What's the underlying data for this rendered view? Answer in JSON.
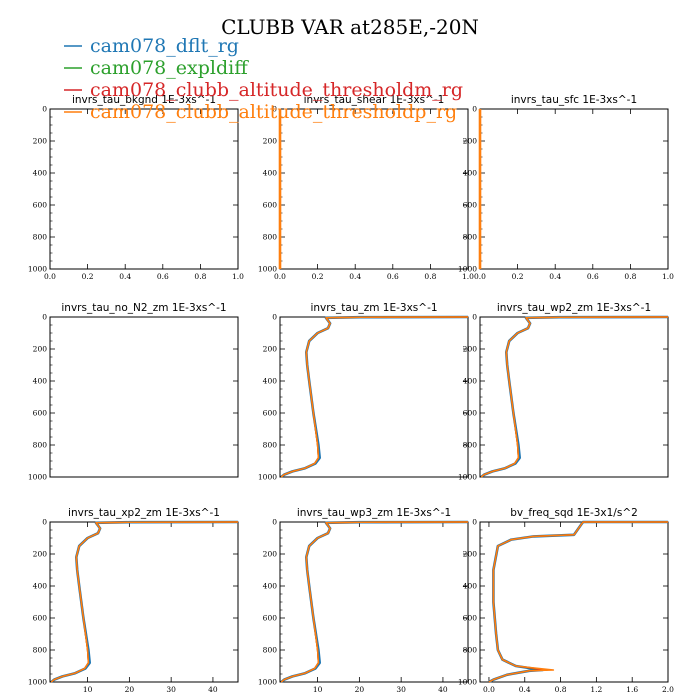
{
  "figure": {
    "title": "CLUBB VAR at285E,-20N"
  },
  "legend": [
    {
      "name": "cam078_dflt_rg",
      "color": "#1f77b4"
    },
    {
      "name": "cam078_expldiff",
      "color": "#2ca02c"
    },
    {
      "name": "cam078_clubb_altitude_thresholdm_rg",
      "color": "#d62728"
    },
    {
      "name": "cam078_clubb_altitude_thresholdp_rg",
      "color": "#ff7f0e"
    }
  ],
  "chart_data": [
    {
      "type": "line",
      "title": "invrs_tau_bkgnd   1E-3xs^-1",
      "xlim": [
        0,
        1
      ],
      "ylim": [
        1000,
        0
      ],
      "xticks": [
        "0.0",
        "0.2",
        "0.4",
        "0.6",
        "0.8",
        "1.0"
      ],
      "yticks": [
        "0",
        "200",
        "400",
        "600",
        "800",
        "1000"
      ],
      "series": []
    },
    {
      "type": "line",
      "title": "invrs_tau_shear   1E-3xs^-1",
      "xlim": [
        0,
        1
      ],
      "ylim": [
        1000,
        0
      ],
      "xticks": [
        "0.0",
        "0.2",
        "0.4",
        "0.6",
        "0.8",
        "1.0"
      ],
      "yticks": [
        "0",
        "200",
        "400",
        "600",
        "800",
        "1000"
      ],
      "series": [
        {
          "color": "#ff7f0e",
          "x": [
            0,
            0
          ],
          "y": [
            0,
            1000
          ]
        }
      ]
    },
    {
      "type": "line",
      "title": "invrs_tau_sfc   1E-3xs^-1",
      "xlim": [
        0,
        1
      ],
      "ylim": [
        1000,
        0
      ],
      "xticks": [
        "0.0",
        "0.2",
        "0.4",
        "0.6",
        "0.8",
        "1.0"
      ],
      "yticks": [
        "0",
        "200",
        "400",
        "600",
        "800",
        "1000"
      ],
      "series": [
        {
          "color": "#ff7f0e",
          "x": [
            0,
            0
          ],
          "y": [
            0,
            1000
          ]
        }
      ]
    },
    {
      "type": "line",
      "title": "invrs_tau_no_N2_zm   1E-3xs^-1",
      "xlim": [
        0,
        1
      ],
      "ylim": [
        1000,
        0
      ],
      "xticks": [],
      "yticks": [
        "0",
        "200",
        "400",
        "600",
        "800",
        "1000"
      ],
      "series": []
    },
    {
      "type": "line",
      "title": "invrs_tau_zm   1E-3xs^-1",
      "xlim": [
        1,
        46
      ],
      "ylim": [
        1000,
        0
      ],
      "xticks": [],
      "yticks": [
        "0",
        "200",
        "400",
        "600",
        "800",
        "1000"
      ],
      "series": [
        {
          "color": "#1f77b4",
          "x": [
            46,
            20,
            12,
            13,
            12.5,
            10,
            8,
            7.3,
            7.5,
            8,
            8.5,
            9,
            9.6,
            10.2,
            10.5,
            9.5,
            7,
            4,
            2,
            1.3
          ],
          "y": [
            0,
            1,
            5,
            40,
            70,
            100,
            150,
            220,
            300,
            400,
            500,
            600,
            700,
            800,
            880,
            915,
            945,
            965,
            985,
            1000
          ]
        },
        {
          "color": "#2ca02c",
          "x": [
            46,
            20,
            12,
            13,
            12.5,
            10,
            8,
            7.3,
            7.5,
            8,
            8.5,
            9,
            9.5,
            10,
            10.2,
            9.3,
            7,
            4,
            2,
            1.3
          ],
          "y": [
            0,
            1,
            5,
            40,
            70,
            100,
            150,
            220,
            300,
            400,
            500,
            600,
            700,
            800,
            880,
            915,
            945,
            965,
            985,
            1000
          ]
        },
        {
          "color": "#d62728",
          "x": [
            46,
            20,
            12,
            13,
            12.5,
            10,
            8,
            7.3,
            7.5,
            8,
            8.5,
            9,
            9.5,
            10,
            10.2,
            9.3,
            7,
            4,
            2,
            1.3
          ],
          "y": [
            0,
            1,
            5,
            40,
            70,
            100,
            150,
            220,
            300,
            400,
            500,
            600,
            700,
            800,
            880,
            915,
            945,
            965,
            985,
            1000
          ]
        },
        {
          "color": "#ff7f0e",
          "x": [
            46,
            20,
            12,
            13,
            12.5,
            10,
            8,
            7.3,
            7.5,
            8,
            8.5,
            9,
            9.5,
            10,
            10.2,
            9.3,
            7,
            4,
            2,
            1.3
          ],
          "y": [
            0,
            1,
            5,
            40,
            70,
            100,
            150,
            220,
            300,
            400,
            500,
            600,
            700,
            800,
            880,
            915,
            945,
            965,
            985,
            1000
          ]
        }
      ]
    },
    {
      "type": "line",
      "title": "invrs_tau_wp2_zm   1E-3xs^-1",
      "xlim": [
        1,
        46
      ],
      "ylim": [
        1000,
        0
      ],
      "xticks": [],
      "yticks": [
        "0",
        "200",
        "400",
        "600",
        "800",
        "1000"
      ],
      "series": [
        {
          "color": "#1f77b4",
          "x": [
            46,
            20,
            12,
            13,
            12.5,
            10,
            8,
            7.3,
            7.5,
            8,
            8.5,
            9,
            9.6,
            10.2,
            10.5,
            9.5,
            7,
            4,
            2,
            1.3
          ],
          "y": [
            0,
            1,
            5,
            40,
            70,
            100,
            150,
            220,
            300,
            400,
            500,
            600,
            700,
            800,
            880,
            915,
            945,
            965,
            985,
            1000
          ]
        },
        {
          "color": "#2ca02c",
          "x": [
            46,
            20,
            12,
            13,
            12.5,
            10,
            8,
            7.3,
            7.5,
            8,
            8.5,
            9,
            9.5,
            10,
            10.2,
            9.3,
            7,
            4,
            2,
            1.3
          ],
          "y": [
            0,
            1,
            5,
            40,
            70,
            100,
            150,
            220,
            300,
            400,
            500,
            600,
            700,
            800,
            880,
            915,
            945,
            965,
            985,
            1000
          ]
        },
        {
          "color": "#d62728",
          "x": [
            46,
            20,
            12,
            13,
            12.5,
            10,
            8,
            7.3,
            7.5,
            8,
            8.5,
            9,
            9.5,
            10,
            10.2,
            9.3,
            7,
            4,
            2,
            1.3
          ],
          "y": [
            0,
            1,
            5,
            40,
            70,
            100,
            150,
            220,
            300,
            400,
            500,
            600,
            700,
            800,
            880,
            915,
            945,
            965,
            985,
            1000
          ]
        },
        {
          "color": "#ff7f0e",
          "x": [
            46,
            20,
            12,
            13,
            12.5,
            10,
            8,
            7.3,
            7.5,
            8,
            8.5,
            9,
            9.5,
            10,
            10.2,
            9.3,
            7,
            4,
            2,
            1.3
          ],
          "y": [
            0,
            1,
            5,
            40,
            70,
            100,
            150,
            220,
            300,
            400,
            500,
            600,
            700,
            800,
            880,
            915,
            945,
            965,
            985,
            1000
          ]
        }
      ]
    },
    {
      "type": "line",
      "title": "invrs_tau_xp2_zm   1E-3xs^-1",
      "xlim": [
        1,
        46
      ],
      "ylim": [
        1000,
        0
      ],
      "xticks": [
        "10",
        "20",
        "30",
        "40"
      ],
      "yticks": [
        "0",
        "200",
        "400",
        "600",
        "800",
        "1000"
      ],
      "series": [
        {
          "color": "#1f77b4",
          "x": [
            46,
            20,
            12,
            13,
            12.5,
            10,
            8,
            7.3,
            7.5,
            8,
            8.5,
            9,
            9.6,
            10.2,
            10.5,
            9.5,
            7,
            4,
            2,
            1.3
          ],
          "y": [
            0,
            1,
            5,
            40,
            70,
            100,
            150,
            220,
            300,
            400,
            500,
            600,
            700,
            800,
            880,
            915,
            945,
            965,
            985,
            1000
          ]
        },
        {
          "color": "#2ca02c",
          "x": [
            46,
            20,
            12,
            13,
            12.5,
            10,
            8,
            7.3,
            7.5,
            8,
            8.5,
            9,
            9.5,
            10,
            10.2,
            9.3,
            7,
            4,
            2,
            1.3
          ],
          "y": [
            0,
            1,
            5,
            40,
            70,
            100,
            150,
            220,
            300,
            400,
            500,
            600,
            700,
            800,
            880,
            915,
            945,
            965,
            985,
            1000
          ]
        },
        {
          "color": "#d62728",
          "x": [
            46,
            20,
            12,
            13,
            12.5,
            10,
            8,
            7.3,
            7.5,
            8,
            8.5,
            9,
            9.5,
            10,
            10.2,
            9.3,
            7,
            4,
            2,
            1.3
          ],
          "y": [
            0,
            1,
            5,
            40,
            70,
            100,
            150,
            220,
            300,
            400,
            500,
            600,
            700,
            800,
            880,
            915,
            945,
            965,
            985,
            1000
          ]
        },
        {
          "color": "#ff7f0e",
          "x": [
            46,
            20,
            12,
            13,
            12.5,
            10,
            8,
            7.3,
            7.5,
            8,
            8.5,
            9,
            9.5,
            10,
            10.2,
            9.3,
            7,
            4,
            2,
            1.3
          ],
          "y": [
            0,
            1,
            5,
            40,
            70,
            100,
            150,
            220,
            300,
            400,
            500,
            600,
            700,
            800,
            880,
            915,
            945,
            965,
            985,
            1000
          ]
        }
      ]
    },
    {
      "type": "line",
      "title": "invrs_tau_wp3_zm   1E-3xs^-1",
      "xlim": [
        1,
        46
      ],
      "ylim": [
        1000,
        0
      ],
      "xticks": [
        "10",
        "20",
        "30",
        "40"
      ],
      "yticks": [
        "0",
        "200",
        "400",
        "600",
        "800",
        "1000"
      ],
      "series": [
        {
          "color": "#1f77b4",
          "x": [
            46,
            20,
            12,
            13,
            12.5,
            10,
            8,
            7.3,
            7.5,
            8,
            8.5,
            9,
            9.6,
            10.2,
            10.5,
            9.5,
            7,
            4,
            2,
            1.3
          ],
          "y": [
            0,
            1,
            5,
            40,
            70,
            100,
            150,
            220,
            300,
            400,
            500,
            600,
            700,
            800,
            880,
            915,
            945,
            965,
            985,
            1000
          ]
        },
        {
          "color": "#2ca02c",
          "x": [
            46,
            20,
            12,
            13,
            12.5,
            10,
            8,
            7.3,
            7.5,
            8,
            8.5,
            9,
            9.5,
            10,
            10.2,
            9.3,
            7,
            4,
            2,
            1.3
          ],
          "y": [
            0,
            1,
            5,
            40,
            70,
            100,
            150,
            220,
            300,
            400,
            500,
            600,
            700,
            800,
            880,
            915,
            945,
            965,
            985,
            1000
          ]
        },
        {
          "color": "#d62728",
          "x": [
            46,
            20,
            12,
            13,
            12.5,
            10,
            8,
            7.3,
            7.5,
            8,
            8.5,
            9,
            9.5,
            10,
            10.2,
            9.3,
            7,
            4,
            2,
            1.3
          ],
          "y": [
            0,
            1,
            5,
            40,
            70,
            100,
            150,
            220,
            300,
            400,
            500,
            600,
            700,
            800,
            880,
            915,
            945,
            965,
            985,
            1000
          ]
        },
        {
          "color": "#ff7f0e",
          "x": [
            46,
            20,
            12,
            13,
            12.5,
            10,
            8,
            7.3,
            7.5,
            8,
            8.5,
            9,
            9.5,
            10,
            10.2,
            9.3,
            7,
            4,
            2,
            1.3
          ],
          "y": [
            0,
            1,
            5,
            40,
            70,
            100,
            150,
            220,
            300,
            400,
            500,
            600,
            700,
            800,
            880,
            915,
            945,
            965,
            985,
            1000
          ]
        }
      ]
    },
    {
      "type": "line",
      "title": "bv_freq_sqd   1E-3x1/s^2",
      "xlim": [
        -0.1,
        2.0
      ],
      "ylim": [
        1000,
        0
      ],
      "xticks": [
        "0.0",
        "0.4",
        "0.8",
        "1.2",
        "1.6",
        "2.0"
      ],
      "yticks": [
        "0",
        "200",
        "400",
        "600",
        "800",
        "1000"
      ],
      "series": [
        {
          "color": "#1f77b4",
          "x": [
            2.0,
            1.05,
            0.95,
            0.5,
            0.25,
            0.1,
            0.05,
            0.05,
            0.08,
            0.1,
            0.15,
            0.3,
            0.6,
            0.45,
            0.2,
            0.05,
            0.0
          ],
          "y": [
            0,
            0,
            80,
            90,
            110,
            150,
            300,
            500,
            700,
            800,
            860,
            900,
            925,
            930,
            955,
            985,
            1000
          ]
        },
        {
          "color": "#2ca02c",
          "x": [
            2.0,
            1.05,
            0.95,
            0.5,
            0.25,
            0.1,
            0.05,
            0.05,
            0.08,
            0.1,
            0.15,
            0.3,
            0.62,
            0.45,
            0.2,
            0.05,
            0.0
          ],
          "y": [
            0,
            0,
            80,
            90,
            110,
            150,
            300,
            500,
            700,
            800,
            860,
            900,
            925,
            930,
            955,
            985,
            1000
          ]
        },
        {
          "color": "#d62728",
          "x": [
            2.0,
            1.05,
            0.95,
            0.5,
            0.25,
            0.1,
            0.05,
            0.05,
            0.08,
            0.1,
            0.15,
            0.3,
            0.65,
            0.45,
            0.2,
            0.05,
            0.0
          ],
          "y": [
            0,
            0,
            80,
            90,
            110,
            150,
            300,
            500,
            700,
            800,
            860,
            900,
            925,
            930,
            955,
            985,
            1000
          ]
        },
        {
          "color": "#ff7f0e",
          "x": [
            2.0,
            1.05,
            0.95,
            0.5,
            0.25,
            0.1,
            0.05,
            0.05,
            0.08,
            0.1,
            0.15,
            0.3,
            0.72,
            0.45,
            0.2,
            0.05,
            0.0
          ],
          "y": [
            0,
            0,
            80,
            90,
            110,
            150,
            300,
            500,
            700,
            800,
            860,
            900,
            925,
            930,
            955,
            985,
            1000
          ]
        }
      ]
    }
  ]
}
